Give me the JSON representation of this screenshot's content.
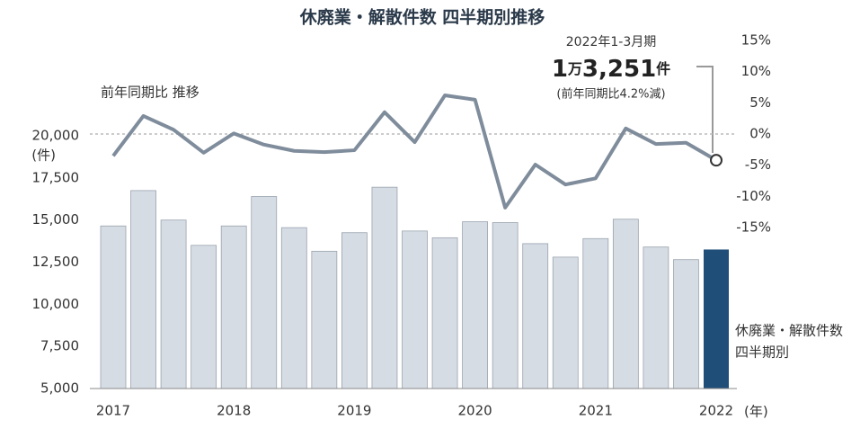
{
  "chart_data": {
    "type": "bar_line",
    "title": "休廃業・解散件数 四半期別推移",
    "y_label": "(件)",
    "x_label": "(年)",
    "categories": [
      "2017",
      null,
      null,
      null,
      "2018",
      null,
      null,
      null,
      "2019",
      null,
      null,
      null,
      "2020",
      null,
      null,
      null,
      "2021",
      null,
      null,
      null,
      "2022"
    ],
    "ylim": [
      5000,
      25660
    ],
    "yticks": [
      {
        "value": 5000,
        "label": "5,000"
      },
      {
        "value": 7500,
        "label": "7,500"
      },
      {
        "value": 10000,
        "label": "10,000"
      },
      {
        "value": 12500,
        "label": "12,500"
      },
      {
        "value": 15000,
        "label": "15,000"
      },
      {
        "value": 17500,
        "label": "17,500"
      },
      {
        "value": 20000,
        "label": "20,000"
      }
    ],
    "y2lim": [
      -40.8,
      15
    ],
    "y2ticks": [
      {
        "value": -15,
        "label": "-15%"
      },
      {
        "value": -10,
        "label": "-10%"
      },
      {
        "value": -5,
        "label": "-5%"
      },
      {
        "value": 0,
        "label": "0%"
      },
      {
        "value": 5,
        "label": "5%"
      },
      {
        "value": 10,
        "label": "10%"
      },
      {
        "value": 15,
        "label": "15%"
      }
    ],
    "reference_line_y2": 0,
    "series": [
      {
        "name_lines": [
          "休廃業・解散件数",
          "四半期別"
        ],
        "color": "#d6dce4",
        "highlight_color": "#1f4e79",
        "values": [
          14650,
          16750,
          15000,
          13500,
          14650,
          16400,
          14550,
          13150,
          14250,
          16950,
          14350,
          13950,
          14900,
          14850,
          13600,
          12800,
          13900,
          15050,
          13400,
          12650,
          13251
        ]
      },
      {
        "name": "前年同期比 推移",
        "color": "#7f8c9b",
        "axis": "y2",
        "values": [
          -3.5,
          2.9,
          0.7,
          -3.0,
          0.1,
          -1.7,
          -2.7,
          -2.9,
          -2.6,
          3.5,
          -1.3,
          6.2,
          5.5,
          -11.8,
          -4.9,
          -8.1,
          -7.1,
          0.9,
          -1.6,
          -1.4,
          -4.2
        ]
      }
    ],
    "annotation": {
      "period": "2022年1-3月期",
      "value_parts": [
        "1",
        "万",
        "3,251",
        "件"
      ],
      "change": "(前年同期比4.2%減)"
    }
  }
}
